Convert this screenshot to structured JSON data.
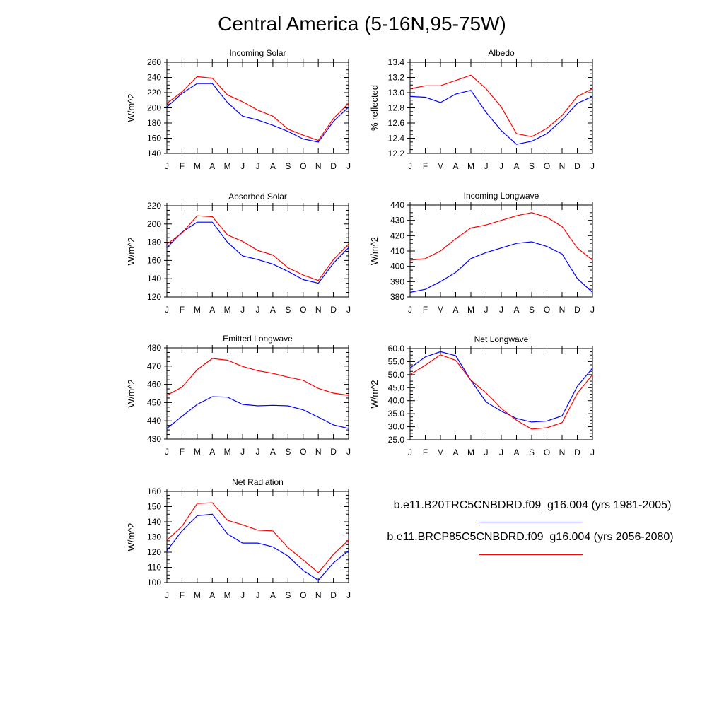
{
  "title": "Central America (5-16N,95-75W)",
  "months": [
    "J",
    "F",
    "M",
    "A",
    "M",
    "J",
    "J",
    "A",
    "S",
    "O",
    "N",
    "D",
    "J"
  ],
  "legend": [
    {
      "label": "b.e11.B20TRC5CNBDRD.f09_g16.004 (yrs 1981-2005)",
      "color": "#0000ff"
    },
    {
      "label": "b.e11.BRCP85C5CNBDRD.f09_g16.004 (yrs 2056-2080)",
      "color": "#ff0000"
    }
  ],
  "chart_data": [
    {
      "type": "line",
      "title": "Incoming Solar",
      "xlabel": "",
      "ylabel": "W/m^2",
      "ylim": [
        140,
        260
      ],
      "yticks": [
        "140",
        "160",
        "180",
        "200",
        "220",
        "240",
        "260"
      ],
      "categories": [
        "J",
        "F",
        "M",
        "A",
        "M",
        "J",
        "J",
        "A",
        "S",
        "O",
        "N",
        "D",
        "J"
      ],
      "series": [
        {
          "color": "#0000ff",
          "values": [
            201,
            219,
            232,
            232,
            207,
            189,
            184,
            177,
            169,
            159,
            155,
            182,
            201
          ]
        },
        {
          "color": "#ff0000",
          "values": [
            206,
            221,
            241,
            239,
            217,
            208,
            197,
            189,
            172,
            164,
            157,
            186,
            206
          ]
        }
      ]
    },
    {
      "type": "line",
      "title": "Albedo",
      "xlabel": "",
      "ylabel": "% reflected",
      "ylim": [
        12.2,
        13.4
      ],
      "yticks": [
        "12.2",
        "12.4",
        "12.6",
        "12.8",
        "13.0",
        "13.2",
        "13.4"
      ],
      "categories": [
        "J",
        "F",
        "M",
        "A",
        "M",
        "J",
        "J",
        "A",
        "S",
        "O",
        "N",
        "D",
        "J"
      ],
      "series": [
        {
          "color": "#0000ff",
          "values": [
            12.95,
            12.94,
            12.87,
            12.98,
            13.03,
            12.74,
            12.5,
            12.32,
            12.36,
            12.46,
            12.64,
            12.86,
            12.95
          ]
        },
        {
          "color": "#ff0000",
          "values": [
            13.05,
            13.09,
            13.09,
            13.16,
            13.23,
            13.05,
            12.81,
            12.46,
            12.42,
            12.53,
            12.7,
            12.95,
            13.05
          ]
        }
      ]
    },
    {
      "type": "line",
      "title": "Absorbed Solar",
      "xlabel": "",
      "ylabel": "W/m^2",
      "ylim": [
        120,
        220
      ],
      "yticks": [
        "120",
        "140",
        "160",
        "180",
        "200",
        "220"
      ],
      "categories": [
        "J",
        "F",
        "M",
        "A",
        "M",
        "J",
        "J",
        "A",
        "S",
        "O",
        "N",
        "D",
        "J"
      ],
      "series": [
        {
          "color": "#0000ff",
          "values": [
            174,
            191,
            202,
            202,
            180,
            165,
            161,
            156,
            148,
            139,
            135,
            157,
            174
          ]
        },
        {
          "color": "#ff0000",
          "values": [
            178,
            190,
            209,
            208,
            188,
            181,
            171,
            166,
            152,
            144,
            138,
            161,
            178
          ]
        }
      ]
    },
    {
      "type": "line",
      "title": "Incoming Longwave",
      "xlabel": "",
      "ylabel": "W/m^2",
      "ylim": [
        380,
        440
      ],
      "yticks": [
        "380",
        "390",
        "400",
        "410",
        "420",
        "430",
        "440"
      ],
      "categories": [
        "J",
        "F",
        "M",
        "A",
        "M",
        "J",
        "J",
        "A",
        "S",
        "O",
        "N",
        "D",
        "J"
      ],
      "series": [
        {
          "color": "#0000ff",
          "values": [
            383,
            385,
            390,
            396,
            405,
            409,
            412,
            415,
            416,
            413,
            408,
            392,
            383
          ]
        },
        {
          "color": "#ff0000",
          "values": [
            404,
            405,
            410,
            418,
            425,
            427,
            430,
            433,
            435,
            432,
            426,
            412,
            404
          ]
        }
      ]
    },
    {
      "type": "line",
      "title": "Emitted Longwave",
      "xlabel": "",
      "ylabel": "W/m^2",
      "ylim": [
        430,
        480
      ],
      "yticks": [
        "430",
        "440",
        "450",
        "460",
        "470",
        "480"
      ],
      "categories": [
        "J",
        "F",
        "M",
        "A",
        "M",
        "J",
        "J",
        "A",
        "S",
        "O",
        "N",
        "D",
        "J"
      ],
      "series": [
        {
          "color": "#0000ff",
          "values": [
            435.8,
            442.5,
            449,
            453.2,
            453,
            449,
            448.2,
            448.5,
            448.2,
            446,
            442,
            437.8,
            435.8
          ]
        },
        {
          "color": "#ff0000",
          "values": [
            454,
            458.5,
            468,
            474.2,
            473.2,
            469.8,
            467.5,
            466,
            464,
            462.2,
            457.8,
            455.2,
            454
          ]
        }
      ]
    },
    {
      "type": "line",
      "title": "Net Longwave",
      "xlabel": "",
      "ylabel": "W/m^2",
      "ylim": [
        25,
        60
      ],
      "yticks": [
        "25.0",
        "30.0",
        "35.0",
        "40.0",
        "45.0",
        "50.0",
        "55.0",
        "60.0"
      ],
      "categories": [
        "J",
        "F",
        "M",
        "A",
        "M",
        "J",
        "J",
        "A",
        "S",
        "O",
        "N",
        "D",
        "J"
      ],
      "series": [
        {
          "color": "#0000ff",
          "values": [
            52.5,
            56.8,
            58.8,
            57.3,
            47.8,
            39.5,
            36,
            33.2,
            31.8,
            32.2,
            34.2,
            45.5,
            52.5
          ]
        },
        {
          "color": "#ff0000",
          "values": [
            50,
            53.6,
            57.6,
            55.5,
            47.9,
            43,
            37,
            32.5,
            29.1,
            29.6,
            31.6,
            42.8,
            50
          ]
        }
      ]
    },
    {
      "type": "line",
      "title": "Net Radiation",
      "xlabel": "",
      "ylabel": "W/m^2",
      "ylim": [
        100,
        160
      ],
      "yticks": [
        "100",
        "110",
        "120",
        "130",
        "140",
        "150",
        "160"
      ],
      "categories": [
        "J",
        "F",
        "M",
        "A",
        "M",
        "J",
        "J",
        "A",
        "S",
        "O",
        "N",
        "D",
        "J"
      ],
      "series": [
        {
          "color": "#0000ff",
          "values": [
            121,
            134,
            144,
            145,
            132,
            126,
            126,
            123.5,
            117.5,
            108,
            101.5,
            113,
            121
          ]
        },
        {
          "color": "#ff0000",
          "values": [
            128,
            137,
            152,
            152.5,
            141,
            138,
            134.5,
            134,
            123,
            115,
            106.5,
            118.5,
            128
          ]
        }
      ]
    }
  ]
}
